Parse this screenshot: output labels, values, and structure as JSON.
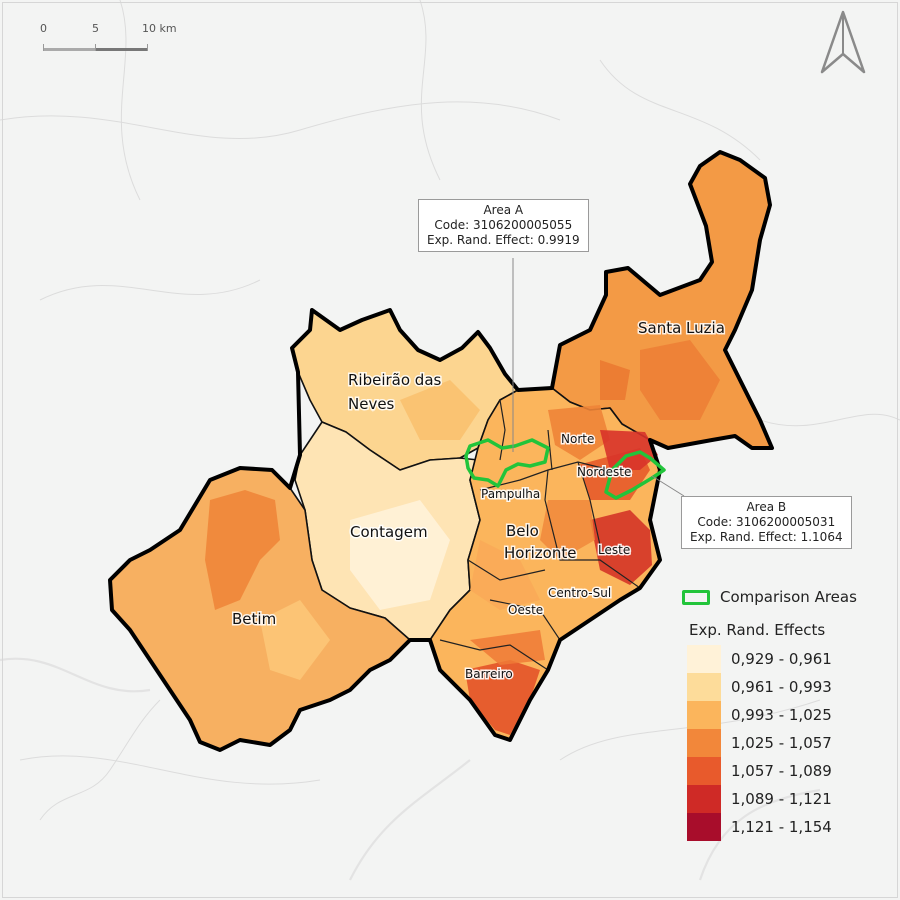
{
  "scale_bar": {
    "ticks": [
      "0",
      "5",
      "10 km"
    ]
  },
  "regions": {
    "santa_luzia": "Santa Luzia",
    "ribeirao_line1": "Ribeirão das",
    "ribeirao_line2": "Neves",
    "contagem": "Contagem",
    "betim": "Betim",
    "bh_line1": "Belo",
    "bh_line2": "Horizonte"
  },
  "districts": {
    "norte": "Norte",
    "nordeste": "Nordeste",
    "pampulha": "Pampulha",
    "leste": "Leste",
    "centro_sul": "Centro-Sul",
    "oeste": "Oeste",
    "barreiro": "Barreiro"
  },
  "callout_a": {
    "title": "Area A",
    "code": "Code: 3106200005055",
    "effect": "Exp. Rand. Effect: 0.9919"
  },
  "callout_b": {
    "title": "Area B",
    "code": "Code: 3106200005031",
    "effect": "Exp. Rand. Effect: 1.1064"
  },
  "legend": {
    "comparison_label": "Comparison Areas",
    "comparison_color": "#22c43a",
    "title": "Exp. Rand. Effects",
    "bins": [
      {
        "label": "0,929 - 0,961",
        "color": "#fff2d8"
      },
      {
        "label": "0,961 - 0,993",
        "color": "#fddc9a"
      },
      {
        "label": "0,993 - 1,025",
        "color": "#fbb55c"
      },
      {
        "label": "1,025 - 1,057",
        "color": "#f2873a"
      },
      {
        "label": "1,057 - 1,089",
        "color": "#e85a2c"
      },
      {
        "label": "1,089 - 1,121",
        "color": "#cf2a26"
      },
      {
        "label": "1,121 - 1,154",
        "color": "#a80d2b"
      }
    ]
  },
  "north_arrow": "north-arrow-icon"
}
